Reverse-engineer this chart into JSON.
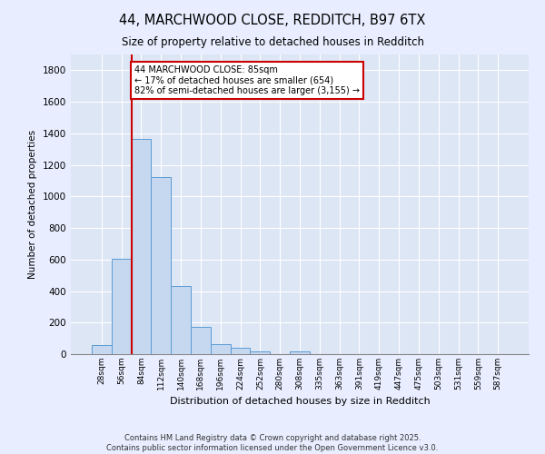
{
  "title": "44, MARCHWOOD CLOSE, REDDITCH, B97 6TX",
  "subtitle": "Size of property relative to detached houses in Redditch",
  "xlabel": "Distribution of detached houses by size in Redditch",
  "ylabel": "Number of detached properties",
  "bar_color": "#c5d8f0",
  "bar_edge_color": "#5b9bd5",
  "background_color": "#e8eeff",
  "plot_bg_color": "#dce6f5",
  "grid_color": "#ffffff",
  "categories": [
    "28sqm",
    "56sqm",
    "84sqm",
    "112sqm",
    "140sqm",
    "168sqm",
    "196sqm",
    "224sqm",
    "252sqm",
    "280sqm",
    "308sqm",
    "335sqm",
    "363sqm",
    "391sqm",
    "419sqm",
    "447sqm",
    "475sqm",
    "503sqm",
    "531sqm",
    "559sqm",
    "587sqm"
  ],
  "values": [
    55,
    605,
    1365,
    1125,
    430,
    175,
    65,
    40,
    18,
    0,
    18,
    0,
    0,
    0,
    0,
    0,
    0,
    0,
    0,
    0,
    0
  ],
  "ylim": [
    0,
    1900
  ],
  "yticks": [
    0,
    200,
    400,
    600,
    800,
    1000,
    1200,
    1400,
    1600,
    1800
  ],
  "vline_x_index": 2,
  "annotation_text": "44 MARCHWOOD CLOSE: 85sqm\n← 17% of detached houses are smaller (654)\n82% of semi-detached houses are larger (3,155) →",
  "vline_color": "#cc0000",
  "annotation_box_facecolor": "#ffffff",
  "annotation_box_edgecolor": "#cc0000",
  "footer_line1": "Contains HM Land Registry data © Crown copyright and database right 2025.",
  "footer_line2": "Contains public sector information licensed under the Open Government Licence v3.0."
}
